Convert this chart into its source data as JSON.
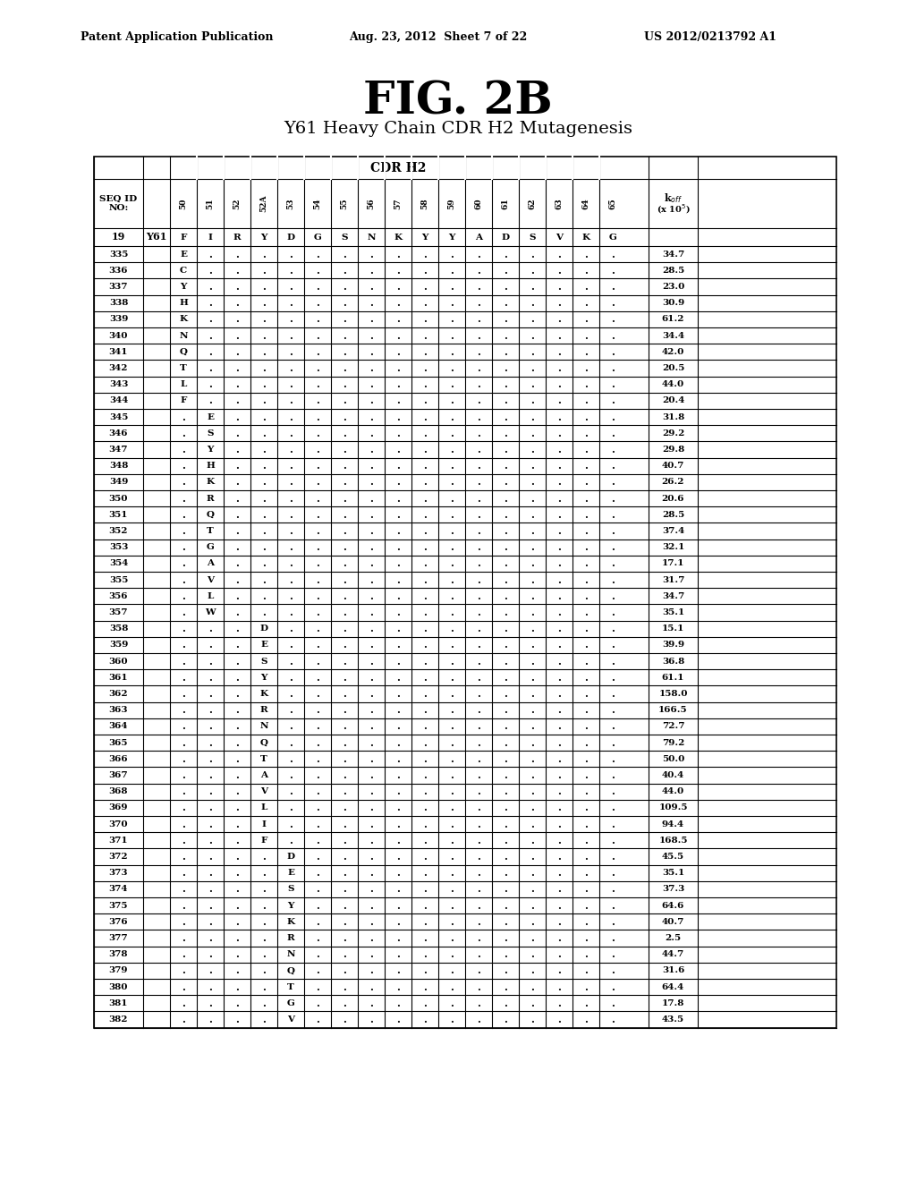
{
  "title": "FIG. 2B",
  "subtitle": "Y61 Heavy Chain CDR H2 Mutagenesis",
  "header_line1": "Patent Application Publication",
  "header_date": "Aug. 23, 2012  Sheet 7 of 22",
  "header_patent": "US 2012/0213792 A1",
  "cdr_label": "CDR H2",
  "col_positions_labels": [
    "50",
    "51",
    "52",
    "52A",
    "53",
    "54",
    "55",
    "56",
    "57",
    "58",
    "59",
    "60",
    "61",
    "62",
    "63",
    "64",
    "65"
  ],
  "seq_col_label": "SEQ ID\nNO:",
  "koff_label": "k_off\n(x 10^5)",
  "ref_row": {
    "seq": "19",
    "name": "Y61",
    "residues": [
      "F",
      "I",
      "R",
      "Y",
      "D",
      "G",
      "S",
      "N",
      "K",
      "Y",
      "Y",
      "A",
      "D",
      "S",
      "V",
      "K",
      "G"
    ],
    "koff": ""
  },
  "rows": [
    {
      "seq": "335",
      "name": "",
      "col": 0,
      "aa": "E",
      "koff": "34.7"
    },
    {
      "seq": "336",
      "name": "",
      "col": 0,
      "aa": "C",
      "koff": "28.5"
    },
    {
      "seq": "337",
      "name": "",
      "col": 0,
      "aa": "Y",
      "koff": "23.0"
    },
    {
      "seq": "338",
      "name": "",
      "col": 0,
      "aa": "H",
      "koff": "30.9"
    },
    {
      "seq": "339",
      "name": "",
      "col": 0,
      "aa": "K",
      "koff": "61.2"
    },
    {
      "seq": "340",
      "name": "",
      "col": 0,
      "aa": "N",
      "koff": "34.4"
    },
    {
      "seq": "341",
      "name": "",
      "col": 0,
      "aa": "Q",
      "koff": "42.0"
    },
    {
      "seq": "342",
      "name": "",
      "col": 0,
      "aa": "T",
      "koff": "20.5"
    },
    {
      "seq": "343",
      "name": "",
      "col": 0,
      "aa": "L",
      "koff": "44.0"
    },
    {
      "seq": "344",
      "name": "",
      "col": 0,
      "aa": "F",
      "koff": "20.4"
    },
    {
      "seq": "345",
      "name": "",
      "col": 1,
      "aa": "E",
      "koff": "31.8"
    },
    {
      "seq": "346",
      "name": "",
      "col": 1,
      "aa": "S",
      "koff": "29.2"
    },
    {
      "seq": "347",
      "name": "",
      "col": 1,
      "aa": "Y",
      "koff": "29.8"
    },
    {
      "seq": "348",
      "name": "",
      "col": 1,
      "aa": "H",
      "koff": "40.7"
    },
    {
      "seq": "349",
      "name": "",
      "col": 1,
      "aa": "K",
      "koff": "26.2"
    },
    {
      "seq": "350",
      "name": "",
      "col": 1,
      "aa": "R",
      "koff": "20.6"
    },
    {
      "seq": "351",
      "name": "",
      "col": 1,
      "aa": "Q",
      "koff": "28.5"
    },
    {
      "seq": "352",
      "name": "",
      "col": 1,
      "aa": "T",
      "koff": "37.4"
    },
    {
      "seq": "353",
      "name": "",
      "col": 1,
      "aa": "G",
      "koff": "32.1"
    },
    {
      "seq": "354",
      "name": "",
      "col": 1,
      "aa": "A",
      "koff": "17.1"
    },
    {
      "seq": "355",
      "name": "",
      "col": 1,
      "aa": "V",
      "koff": "31.7"
    },
    {
      "seq": "356",
      "name": "",
      "col": 1,
      "aa": "L",
      "koff": "34.7"
    },
    {
      "seq": "357",
      "name": "",
      "col": 1,
      "aa": "W",
      "koff": "35.1"
    },
    {
      "seq": "358",
      "name": "",
      "col": 3,
      "aa": "D",
      "koff": "15.1"
    },
    {
      "seq": "359",
      "name": "",
      "col": 3,
      "aa": "E",
      "koff": "39.9"
    },
    {
      "seq": "360",
      "name": "",
      "col": 3,
      "aa": "S",
      "koff": "36.8"
    },
    {
      "seq": "361",
      "name": "",
      "col": 3,
      "aa": "Y",
      "koff": "61.1"
    },
    {
      "seq": "362",
      "name": "",
      "col": 3,
      "aa": "K",
      "koff": "158.0"
    },
    {
      "seq": "363",
      "name": "",
      "col": 3,
      "aa": "R",
      "koff": "166.5"
    },
    {
      "seq": "364",
      "name": "",
      "col": 3,
      "aa": "N",
      "koff": "72.7"
    },
    {
      "seq": "365",
      "name": "",
      "col": 3,
      "aa": "Q",
      "koff": "79.2"
    },
    {
      "seq": "366",
      "name": "",
      "col": 3,
      "aa": "T",
      "koff": "50.0"
    },
    {
      "seq": "367",
      "name": "",
      "col": 3,
      "aa": "A",
      "koff": "40.4"
    },
    {
      "seq": "368",
      "name": "",
      "col": 3,
      "aa": "V",
      "koff": "44.0"
    },
    {
      "seq": "369",
      "name": "",
      "col": 3,
      "aa": "L",
      "koff": "109.5"
    },
    {
      "seq": "370",
      "name": "",
      "col": 3,
      "aa": "I",
      "koff": "94.4"
    },
    {
      "seq": "371",
      "name": "",
      "col": 3,
      "aa": "F",
      "koff": "168.5"
    },
    {
      "seq": "372",
      "name": "",
      "col": 4,
      "aa": "D",
      "koff": "45.5"
    },
    {
      "seq": "373",
      "name": "",
      "col": 4,
      "aa": "E",
      "koff": "35.1"
    },
    {
      "seq": "374",
      "name": "",
      "col": 4,
      "aa": "S",
      "koff": "37.3"
    },
    {
      "seq": "375",
      "name": "",
      "col": 4,
      "aa": "Y",
      "koff": "64.6"
    },
    {
      "seq": "376",
      "name": "",
      "col": 4,
      "aa": "K",
      "koff": "40.7"
    },
    {
      "seq": "377",
      "name": "",
      "col": 4,
      "aa": "R",
      "koff": "2.5"
    },
    {
      "seq": "378",
      "name": "",
      "col": 4,
      "aa": "N",
      "koff": "44.7"
    },
    {
      "seq": "379",
      "name": "",
      "col": 4,
      "aa": "Q",
      "koff": "31.6"
    },
    {
      "seq": "380",
      "name": "",
      "col": 4,
      "aa": "T",
      "koff": "64.4"
    },
    {
      "seq": "381",
      "name": "",
      "col": 4,
      "aa": "G",
      "koff": "17.8"
    },
    {
      "seq": "382",
      "name": "",
      "col": 4,
      "aa": "V",
      "koff": "43.5"
    }
  ]
}
